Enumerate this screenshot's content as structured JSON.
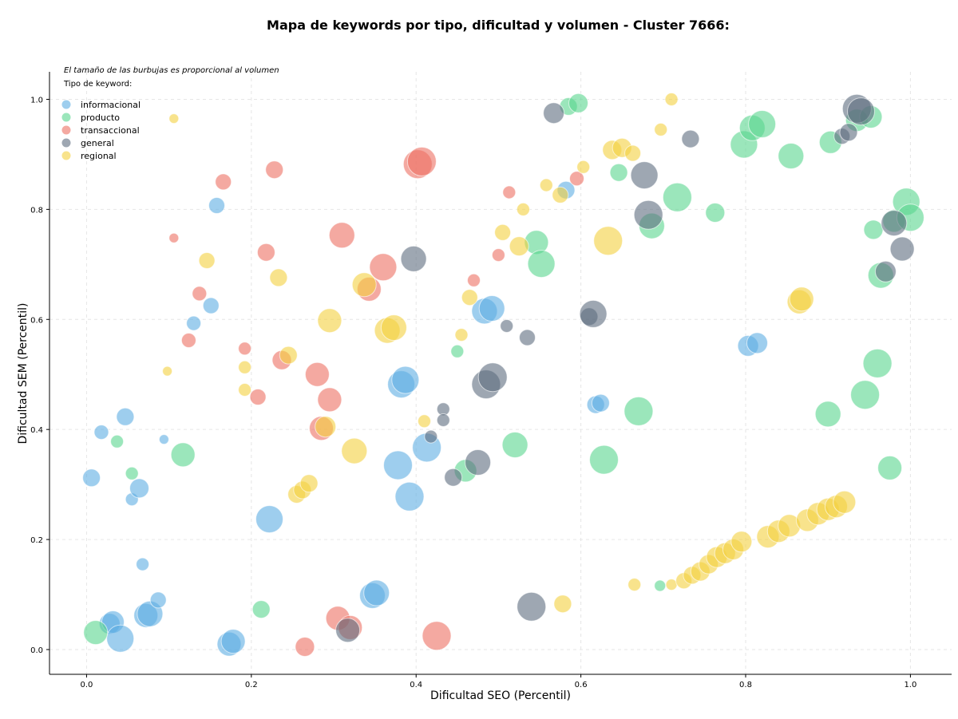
{
  "chart_data": {
    "type": "scatter",
    "title": "Mapa de keywords por tipo, dificultad y volumen - Cluster 7666:",
    "xlabel": "Dificultad SEO (Percentil)",
    "ylabel": "Dificultad SEM (Percentil)",
    "xlim": [
      -0.045,
      1.05
    ],
    "ylim": [
      -0.045,
      1.05
    ],
    "xticks": [
      "0.0",
      "0.2",
      "0.4",
      "0.6",
      "0.8",
      "1.0"
    ],
    "yticks": [
      "0.0",
      "0.2",
      "0.4",
      "0.6",
      "0.8",
      "1.0"
    ],
    "grid": true,
    "note": "El tamaño de las burbujas es proporcional al volumen",
    "legend": {
      "title": "Tipo de keyword:",
      "placement": "top-left"
    },
    "series": [
      {
        "name": "informacional",
        "color": "#5dade2",
        "points": [
          [
            0.006,
            0.312,
            11
          ],
          [
            0.018,
            0.395,
            9
          ],
          [
            0.028,
            0.047,
            13
          ],
          [
            0.032,
            0.05,
            14
          ],
          [
            0.041,
            0.02,
            17
          ],
          [
            0.047,
            0.423,
            11
          ],
          [
            0.055,
            0.273,
            8
          ],
          [
            0.064,
            0.293,
            12
          ],
          [
            0.068,
            0.155,
            8
          ],
          [
            0.072,
            0.062,
            15
          ],
          [
            0.077,
            0.065,
            16
          ],
          [
            0.087,
            0.09,
            10
          ],
          [
            0.094,
            0.382,
            6
          ],
          [
            0.13,
            0.593,
            9
          ],
          [
            0.151,
            0.625,
            10
          ],
          [
            0.158,
            0.807,
            10
          ],
          [
            0.173,
            0.01,
            15
          ],
          [
            0.178,
            0.015,
            15
          ],
          [
            0.222,
            0.237,
            17
          ],
          [
            0.347,
            0.098,
            16
          ],
          [
            0.352,
            0.103,
            16
          ],
          [
            0.378,
            0.335,
            18
          ],
          [
            0.382,
            0.482,
            17
          ],
          [
            0.387,
            0.49,
            17
          ],
          [
            0.392,
            0.278,
            18
          ],
          [
            0.413,
            0.367,
            18
          ],
          [
            0.483,
            0.615,
            16
          ],
          [
            0.492,
            0.62,
            16
          ],
          [
            0.582,
            0.835,
            11
          ],
          [
            0.618,
            0.445,
            11
          ],
          [
            0.624,
            0.448,
            11
          ],
          [
            0.803,
            0.552,
            13
          ],
          [
            0.814,
            0.557,
            13
          ]
        ]
      },
      {
        "name": "producto",
        "color": "#58d68d",
        "points": [
          [
            0.011,
            0.031,
            15
          ],
          [
            0.037,
            0.378,
            8
          ],
          [
            0.055,
            0.32,
            8
          ],
          [
            0.117,
            0.354,
            15
          ],
          [
            0.212,
            0.073,
            11
          ],
          [
            0.45,
            0.542,
            8
          ],
          [
            0.46,
            0.325,
            14
          ],
          [
            0.52,
            0.372,
            16
          ],
          [
            0.546,
            0.74,
            15
          ],
          [
            0.552,
            0.701,
            17
          ],
          [
            0.585,
            0.987,
            11
          ],
          [
            0.597,
            0.993,
            12
          ],
          [
            0.628,
            0.345,
            18
          ],
          [
            0.646,
            0.867,
            11
          ],
          [
            0.67,
            0.433,
            18
          ],
          [
            0.686,
            0.77,
            16
          ],
          [
            0.717,
            0.822,
            18
          ],
          [
            0.763,
            0.794,
            12
          ],
          [
            0.798,
            0.918,
            17
          ],
          [
            0.808,
            0.948,
            16
          ],
          [
            0.82,
            0.955,
            17
          ],
          [
            0.855,
            0.897,
            16
          ],
          [
            0.9,
            0.428,
            16
          ],
          [
            0.903,
            0.922,
            14
          ],
          [
            0.935,
            0.962,
            14
          ],
          [
            0.945,
            0.463,
            18
          ],
          [
            0.952,
            0.968,
            14
          ],
          [
            0.955,
            0.763,
            12
          ],
          [
            0.96,
            0.52,
            18
          ],
          [
            0.964,
            0.68,
            16
          ],
          [
            0.975,
            0.33,
            15
          ],
          [
            0.98,
            0.779,
            14
          ],
          [
            0.995,
            0.814,
            17
          ],
          [
            1.0,
            0.785,
            17
          ],
          [
            0.696,
            0.116,
            7
          ]
        ]
      },
      {
        "name": "transaccional",
        "color": "#ec7063",
        "points": [
          [
            0.106,
            0.748,
            6
          ],
          [
            0.124,
            0.562,
            9
          ],
          [
            0.137,
            0.647,
            9
          ],
          [
            0.166,
            0.85,
            10
          ],
          [
            0.192,
            0.547,
            8
          ],
          [
            0.208,
            0.459,
            10
          ],
          [
            0.218,
            0.722,
            11
          ],
          [
            0.228,
            0.872,
            11
          ],
          [
            0.237,
            0.526,
            12
          ],
          [
            0.265,
            0.005,
            12
          ],
          [
            0.28,
            0.5,
            15
          ],
          [
            0.285,
            0.402,
            15
          ],
          [
            0.295,
            0.454,
            15
          ],
          [
            0.305,
            0.057,
            15
          ],
          [
            0.31,
            0.753,
            16
          ],
          [
            0.32,
            0.04,
            15
          ],
          [
            0.343,
            0.655,
            15
          ],
          [
            0.36,
            0.695,
            17
          ],
          [
            0.402,
            0.882,
            18
          ],
          [
            0.407,
            0.887,
            18
          ],
          [
            0.425,
            0.025,
            18
          ],
          [
            0.47,
            0.671,
            8
          ],
          [
            0.5,
            0.717,
            8
          ],
          [
            0.513,
            0.831,
            8
          ],
          [
            0.595,
            0.856,
            9
          ]
        ]
      },
      {
        "name": "general",
        "color": "#5d6d7e",
        "points": [
          [
            0.317,
            0.035,
            15
          ],
          [
            0.397,
            0.71,
            16
          ],
          [
            0.418,
            0.387,
            8
          ],
          [
            0.433,
            0.437,
            8
          ],
          [
            0.433,
            0.417,
            8
          ],
          [
            0.445,
            0.313,
            11
          ],
          [
            0.475,
            0.34,
            16
          ],
          [
            0.485,
            0.482,
            18
          ],
          [
            0.493,
            0.495,
            18
          ],
          [
            0.51,
            0.588,
            8
          ],
          [
            0.535,
            0.567,
            10
          ],
          [
            0.54,
            0.078,
            18
          ],
          [
            0.567,
            0.975,
            13
          ],
          [
            0.61,
            0.605,
            11
          ],
          [
            0.615,
            0.61,
            17
          ],
          [
            0.677,
            0.862,
            17
          ],
          [
            0.682,
            0.79,
            18
          ],
          [
            0.733,
            0.928,
            11
          ],
          [
            0.917,
            0.933,
            10
          ],
          [
            0.925,
            0.94,
            11
          ],
          [
            0.935,
            0.983,
            18
          ],
          [
            0.94,
            0.978,
            17
          ],
          [
            0.97,
            0.687,
            13
          ],
          [
            0.98,
            0.775,
            16
          ],
          [
            0.99,
            0.728,
            15
          ]
        ]
      },
      {
        "name": "regional",
        "color": "#f4d03f",
        "points": [
          [
            0.098,
            0.506,
            6
          ],
          [
            0.106,
            0.965,
            6
          ],
          [
            0.146,
            0.707,
            10
          ],
          [
            0.192,
            0.472,
            8
          ],
          [
            0.192,
            0.513,
            8
          ],
          [
            0.233,
            0.676,
            11
          ],
          [
            0.245,
            0.535,
            11
          ],
          [
            0.255,
            0.282,
            11
          ],
          [
            0.262,
            0.29,
            11
          ],
          [
            0.27,
            0.302,
            11
          ],
          [
            0.29,
            0.405,
            13
          ],
          [
            0.295,
            0.598,
            15
          ],
          [
            0.325,
            0.361,
            16
          ],
          [
            0.337,
            0.663,
            15
          ],
          [
            0.365,
            0.58,
            16
          ],
          [
            0.373,
            0.585,
            16
          ],
          [
            0.41,
            0.415,
            8
          ],
          [
            0.455,
            0.572,
            8
          ],
          [
            0.465,
            0.64,
            10
          ],
          [
            0.505,
            0.758,
            10
          ],
          [
            0.525,
            0.733,
            12
          ],
          [
            0.53,
            0.8,
            8
          ],
          [
            0.558,
            0.844,
            8
          ],
          [
            0.575,
            0.826,
            10
          ],
          [
            0.578,
            0.083,
            11
          ],
          [
            0.603,
            0.877,
            8
          ],
          [
            0.633,
            0.743,
            18
          ],
          [
            0.638,
            0.908,
            12
          ],
          [
            0.65,
            0.912,
            12
          ],
          [
            0.663,
            0.902,
            10
          ],
          [
            0.665,
            0.118,
            8
          ],
          [
            0.697,
            0.945,
            8
          ],
          [
            0.71,
            1.0,
            8
          ],
          [
            0.71,
            0.118,
            7
          ],
          [
            0.725,
            0.125,
            10
          ],
          [
            0.735,
            0.135,
            11
          ],
          [
            0.745,
            0.142,
            12
          ],
          [
            0.755,
            0.155,
            12
          ],
          [
            0.765,
            0.168,
            13
          ],
          [
            0.775,
            0.175,
            13
          ],
          [
            0.785,
            0.182,
            13
          ],
          [
            0.795,
            0.196,
            13
          ],
          [
            0.827,
            0.205,
            14
          ],
          [
            0.84,
            0.215,
            14
          ],
          [
            0.853,
            0.225,
            14
          ],
          [
            0.865,
            0.632,
            15
          ],
          [
            0.868,
            0.637,
            15
          ],
          [
            0.875,
            0.235,
            14
          ],
          [
            0.888,
            0.247,
            14
          ],
          [
            0.9,
            0.255,
            14
          ],
          [
            0.91,
            0.26,
            14
          ],
          [
            0.92,
            0.268,
            14
          ]
        ]
      }
    ]
  }
}
